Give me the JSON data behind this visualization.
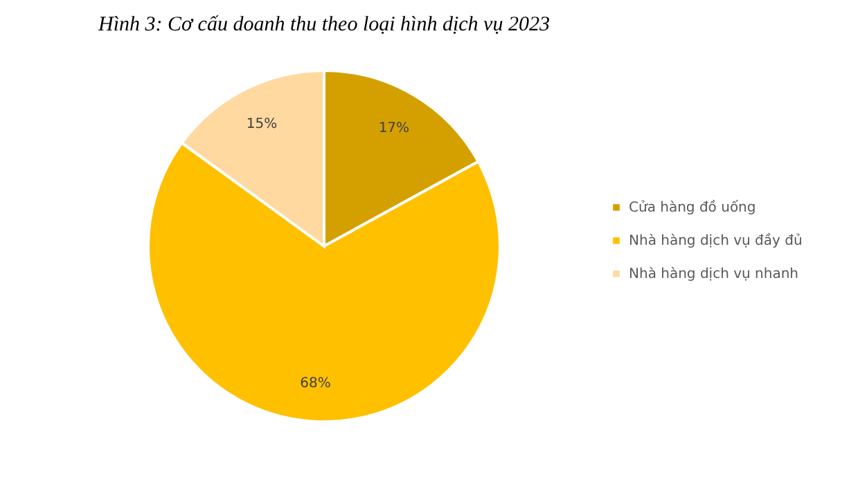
{
  "chart_data": {
    "type": "pie",
    "title": "Hình 3: Cơ cấu doanh thu theo loại hình dịch vụ 2023",
    "categories": [
      "Cửa hàng đồ uống",
      "Nhà hàng dịch vụ đầy đủ",
      "Nhà hàng dịch vụ nhanh"
    ],
    "values": [
      17,
      68,
      15
    ],
    "colors": [
      "#d4a000",
      "#ffc000",
      "#ffd9a0"
    ],
    "value_labels": [
      "17%",
      "68%",
      "15%"
    ],
    "legend": "right"
  }
}
